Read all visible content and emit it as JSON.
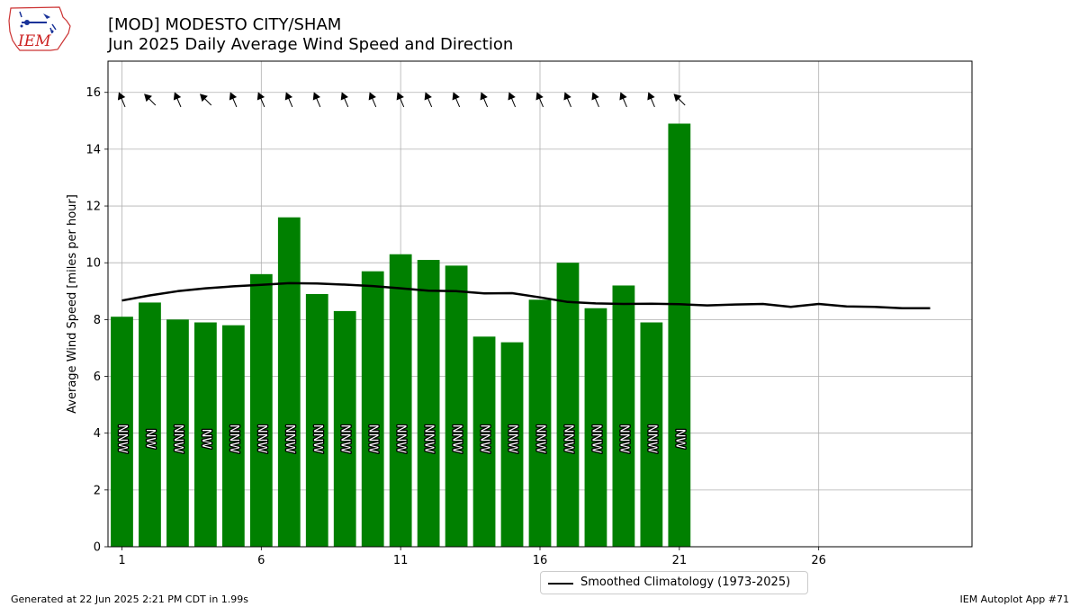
{
  "title_line1": "[MOD] MODESTO CITY/SHAM",
  "title_line2": "Jun 2025 Daily Average Wind Speed and Direction",
  "logo_text": "IEM",
  "footer_left": "Generated at 22 Jun 2025 2:21 PM CDT in 1.99s",
  "footer_right": "IEM Autoplot App #71",
  "legend_label": "Smoothed Climatology (1973-2025)",
  "colors": {
    "bar": "#008000",
    "climatology_line": "#000000",
    "grid": "#b0b0b0"
  },
  "chart_data": {
    "type": "bar",
    "ylabel": "Average Wind Speed [miles per hour]",
    "xlim": [
      0.5,
      31.5
    ],
    "ylim": [
      0,
      17.1
    ],
    "x_ticks": [
      1,
      6,
      11,
      16,
      21,
      26
    ],
    "y_ticks": [
      0,
      2,
      4,
      6,
      8,
      10,
      12,
      14,
      16
    ],
    "grid": true,
    "legend_position": "bottom-center",
    "series": [
      {
        "type": "bar",
        "x": [
          1,
          2,
          3,
          4,
          5,
          6,
          7,
          8,
          9,
          10,
          11,
          12,
          13,
          14,
          15,
          16,
          17,
          18,
          19,
          20,
          21
        ],
        "values": [
          8.1,
          8.6,
          8.0,
          7.9,
          7.8,
          9.6,
          11.6,
          8.9,
          8.3,
          9.7,
          10.3,
          10.1,
          9.9,
          7.4,
          7.2,
          8.7,
          10.0,
          8.4,
          9.2,
          7.9,
          14.9
        ],
        "direction_labels": [
          "NNW",
          "NW",
          "NNW",
          "NW",
          "NNW",
          "NNW",
          "NNW",
          "NNW",
          "NNW",
          "NNW",
          "NNW",
          "NNW",
          "NNW",
          "NNW",
          "NNW",
          "NNW",
          "NNW",
          "NNW",
          "NNW",
          "NNW",
          "NW"
        ],
        "arrow_directions_deg": [
          337,
          315,
          337,
          315,
          337,
          337,
          337,
          337,
          337,
          337,
          337,
          337,
          337,
          337,
          337,
          337,
          337,
          337,
          337,
          337,
          315
        ]
      },
      {
        "type": "line",
        "name": "Smoothed Climatology (1973-2025)",
        "x": [
          1,
          2,
          3,
          4,
          5,
          6,
          7,
          8,
          9,
          10,
          11,
          12,
          13,
          14,
          15,
          16,
          17,
          18,
          19,
          20,
          21,
          22,
          23,
          24,
          25,
          26,
          27,
          28,
          29,
          30
        ],
        "values": [
          8.67,
          8.85,
          9.0,
          9.1,
          9.17,
          9.22,
          9.28,
          9.27,
          9.23,
          9.18,
          9.1,
          9.02,
          9.0,
          8.92,
          8.93,
          8.78,
          8.62,
          8.57,
          8.55,
          8.56,
          8.54,
          8.5,
          8.53,
          8.55,
          8.45,
          8.55,
          8.46,
          8.45,
          8.4,
          8.4
        ]
      }
    ]
  }
}
